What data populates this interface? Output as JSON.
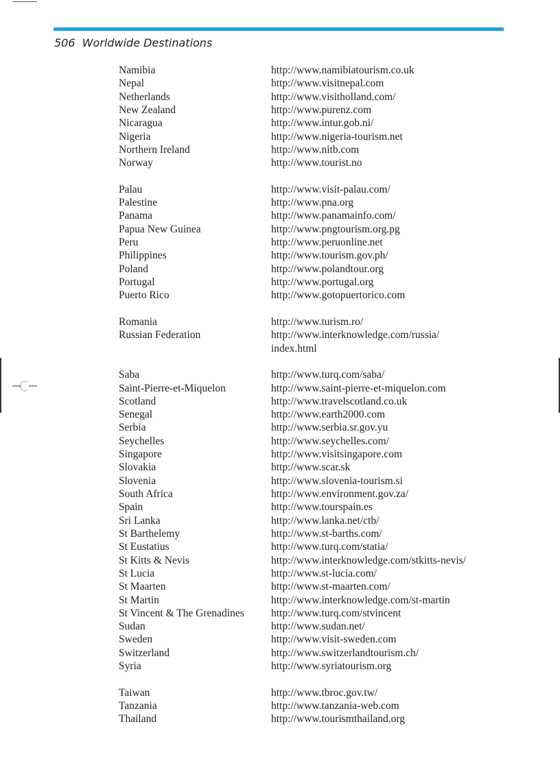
{
  "header": {
    "page_number": "506",
    "title": "Worldwide Destinations",
    "rule_color": "#1aa3e0"
  },
  "groups": [
    {
      "entries": [
        {
          "country": "Namibia",
          "url": [
            "http://www.namibiatourism.co.uk"
          ]
        },
        {
          "country": "Nepal",
          "url": [
            "http://www.visitnepal.com"
          ]
        },
        {
          "country": "Netherlands",
          "url": [
            "http://www.visitholland.com/"
          ]
        },
        {
          "country": "New Zealand",
          "url": [
            "http://www.purenz.com"
          ]
        },
        {
          "country": "Nicaragua",
          "url": [
            "http://www.intur.gob.ni/"
          ]
        },
        {
          "country": "Nigeria",
          "url": [
            "http://www.nigeria-tourism.net"
          ]
        },
        {
          "country": "Northern Ireland",
          "url": [
            "http://www.nitb.com"
          ]
        },
        {
          "country": "Norway",
          "url": [
            "http://www.tourist.no"
          ]
        }
      ]
    },
    {
      "entries": [
        {
          "country": "Palau",
          "url": [
            "http://www.visit-palau.com/"
          ]
        },
        {
          "country": "Palestine",
          "url": [
            "http://www.pna.org"
          ]
        },
        {
          "country": "Panama",
          "url": [
            "http://www.panamainfo.com/"
          ]
        },
        {
          "country": "Papua New Guinea",
          "url": [
            "http://www.pngtourism.org.pg"
          ]
        },
        {
          "country": "Peru",
          "url": [
            "http://www.peruonline.net"
          ]
        },
        {
          "country": "Philippines",
          "url": [
            "http://www.tourism.gov.ph/"
          ]
        },
        {
          "country": "Poland",
          "url": [
            "http://www.polandtour.org"
          ]
        },
        {
          "country": "Portugal",
          "url": [
            "http://www.portugal.org"
          ]
        },
        {
          "country": "Puerto Rico",
          "url": [
            "http://www.gotopuertorico.com"
          ]
        }
      ]
    },
    {
      "entries": [
        {
          "country": "Romania",
          "url": [
            "http://www.turism.ro/"
          ]
        },
        {
          "country": "Russian Federation",
          "url": [
            "http://www.interknowledge.com/russia/",
            "index.html"
          ]
        }
      ]
    },
    {
      "entries": [
        {
          "country": "Saba",
          "url": [
            "http://www.turq.com/saba/"
          ]
        },
        {
          "country": "Saint-Pierre-et-Miquelon",
          "url": [
            "http://www.saint-pierre-et-miquelon.com"
          ]
        },
        {
          "country": "Scotland",
          "url": [
            "http://www.travelscotland.co.uk"
          ]
        },
        {
          "country": "Senegal",
          "url": [
            "http://www.earth2000.com"
          ]
        },
        {
          "country": "Serbia",
          "url": [
            "http://www.serbia.sr.gov.yu"
          ]
        },
        {
          "country": "Seychelles",
          "url": [
            "http://www.seychelles.com/"
          ]
        },
        {
          "country": "Singapore",
          "url": [
            "http://www.visitsingapore.com"
          ]
        },
        {
          "country": "Slovakia",
          "url": [
            "http://www.scar.sk"
          ]
        },
        {
          "country": "Slovenia",
          "url": [
            "http://www.slovenia-tourism.si"
          ]
        },
        {
          "country": "South Africa",
          "url": [
            "http://www.environment.gov.za/"
          ]
        },
        {
          "country": "Spain",
          "url": [
            "http://www.tourspain.es"
          ]
        },
        {
          "country": "Sri Lanka",
          "url": [
            "http://www.lanka.net/ctb/"
          ]
        },
        {
          "country": "St Barthelemy",
          "url": [
            "http://www.st-barths.com/"
          ]
        },
        {
          "country": "St Eustatius",
          "url": [
            "http://www.turq.com/statia/"
          ]
        },
        {
          "country": "St Kitts & Nevis",
          "url": [
            "http://www.interknowledge.com/stkitts-nevis/"
          ]
        },
        {
          "country": "St Lucia",
          "url": [
            "http://www.st-lucia.com/"
          ]
        },
        {
          "country": "St Maarten",
          "url": [
            "http://www.st-maarten.com/"
          ]
        },
        {
          "country": "St Martin",
          "url": [
            "http://www.interknowledge.com/st-martin"
          ]
        },
        {
          "country": "St Vincent & The Grenadines",
          "url": [
            "http://www.turq.com/stvincent"
          ]
        },
        {
          "country": "Sudan",
          "url": [
            "http://www.sudan.net/"
          ]
        },
        {
          "country": "Sweden",
          "url": [
            "http://www.visit-sweden.com"
          ]
        },
        {
          "country": "Switzerland",
          "url": [
            "http://www.switzerlandtourism.ch/"
          ]
        },
        {
          "country": "Syria",
          "url": [
            "http://www.syriatourism.org"
          ]
        }
      ]
    },
    {
      "entries": [
        {
          "country": "Taiwan",
          "url": [
            "http://www.tbroc.gov.tw/"
          ]
        },
        {
          "country": "Tanzania",
          "url": [
            "http://www.tanzania-web.com"
          ]
        },
        {
          "country": "Thailand",
          "url": [
            "http://www.tourismthailand.org"
          ]
        }
      ]
    }
  ]
}
